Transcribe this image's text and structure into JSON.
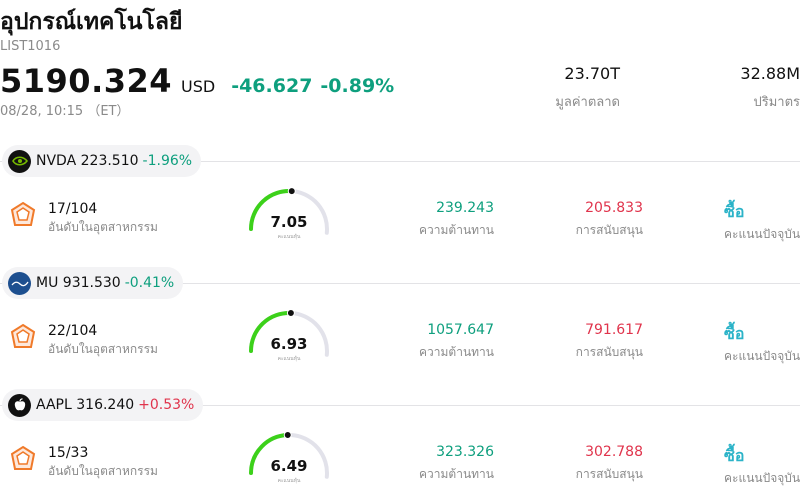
{
  "header": {
    "title": "อุปกรณ์เทคโนโลยี",
    "code": "LIST1016",
    "price": "5190.324",
    "currency": "USD",
    "change": "-46.627",
    "change_pct": "-0.89%",
    "timestamp": "08/28, 10:15 （ET）"
  },
  "stats": [
    {
      "value": "23.70T",
      "label": "มูลค่าตลาด"
    },
    {
      "value": "32.88M",
      "label": "ปริมาตร"
    }
  ],
  "stocks": [
    {
      "ticker": "NVDA",
      "price": "223.510",
      "change_pct": "-1.96%",
      "change_dir": "down",
      "logo_icon": "nvidia-logo-icon",
      "logo_bg": "#111111",
      "rank": "17/104",
      "rank_label": "อันดับในอุตสาหกรรม",
      "score": "7.05",
      "score_fraction": 0.705,
      "score_label": "คะแนนหุ้น",
      "resistance": "239.243",
      "resistance_label": "ความต้านทาน",
      "support": "205.833",
      "support_label": "การสนับสนุน",
      "rating": "ซื้อ",
      "rating_label": "คะแนนปัจจุบัน"
    },
    {
      "ticker": "MU",
      "price": "931.530",
      "change_pct": "-0.41%",
      "change_dir": "down",
      "logo_icon": "micron-logo-icon",
      "logo_bg": "#1d4f8f",
      "rank": "22/104",
      "rank_label": "อันดับในอุตสาหกรรม",
      "score": "6.93",
      "score_fraction": 0.693,
      "score_label": "คะแนนหุ้น",
      "resistance": "1057.647",
      "resistance_label": "ความต้านทาน",
      "support": "791.617",
      "support_label": "การสนับสนุน",
      "rating": "ซื้อ",
      "rating_label": "คะแนนปัจจุบัน"
    },
    {
      "ticker": "AAPL",
      "price": "316.240",
      "change_pct": "+0.53%",
      "change_dir": "up",
      "logo_icon": "apple-logo-icon",
      "logo_bg": "#111111",
      "rank": "15/33",
      "rank_label": "อันดับในอุตสาหกรรม",
      "score": "6.49",
      "score_fraction": 0.649,
      "score_label": "คะแนนหุ้น",
      "resistance": "323.326",
      "resistance_label": "ความต้านทาน",
      "support": "302.788",
      "support_label": "การสนับสนุน",
      "rating": "ซื้อ",
      "rating_label": "คะแนนปัจจุบัน"
    }
  ],
  "colors": {
    "down": "#0e9f7e",
    "up": "#e0344c",
    "gauge_fill": "#3cd11a",
    "gauge_track": "#e2e2ea",
    "rating": "#2bb3c8",
    "rank_icon": "#f07a2a"
  }
}
